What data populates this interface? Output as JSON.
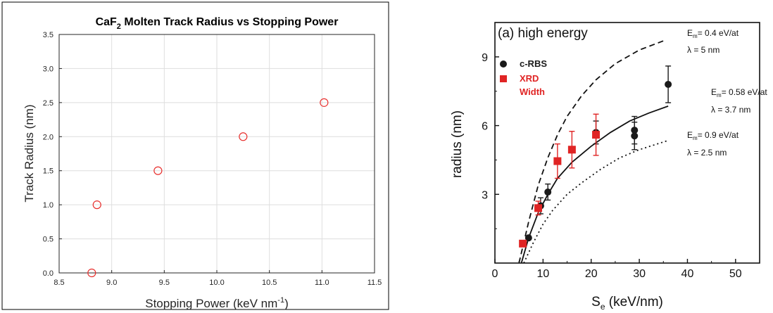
{
  "chart_data": [
    {
      "type": "scatter",
      "title_main": "CaF",
      "title_sub": "2",
      "title_rest": " Molten Track Radius vs Stopping Power",
      "xlabel_main": "Stopping Power (keV nm",
      "xlabel_sup": "-1",
      "xlabel_end": ")",
      "ylabel": "Track Radius (nm)",
      "xlim": [
        8.5,
        11.5
      ],
      "ylim": [
        0,
        3.5
      ],
      "xticks": [
        "8.5",
        "9.0",
        "9.5",
        "10.0",
        "10.5",
        "11.0",
        "11.5"
      ],
      "yticks": [
        "0.0",
        "0.5",
        "1.0",
        "1.5",
        "2.0",
        "2.5",
        "3.0",
        "3.5"
      ],
      "grid": true,
      "marker_color": "#e8302e",
      "points": [
        {
          "x": 8.81,
          "y": 0.0
        },
        {
          "x": 8.86,
          "y": 1.0
        },
        {
          "x": 9.44,
          "y": 1.5
        },
        {
          "x": 10.25,
          "y": 2.0
        },
        {
          "x": 11.02,
          "y": 2.5
        }
      ]
    },
    {
      "type": "scatter",
      "annotation": "(a) high energy",
      "xlabel_main": "S",
      "xlabel_sub": "e",
      "xlabel_end": " (keV/nm)",
      "ylabel": "radius (nm)",
      "xlim": [
        0,
        55
      ],
      "ylim": [
        0,
        10.5
      ],
      "xticks": [
        "0",
        "10",
        "20",
        "30",
        "40",
        "50"
      ],
      "yticks": [
        "3",
        "6",
        "9"
      ],
      "legend": [
        {
          "label": "c-RBS",
          "marker": "circle",
          "color": "#1a1a1a"
        },
        {
          "label": "XRD",
          "marker": "square",
          "color": "#e02424"
        },
        {
          "label": "Width",
          "marker": "none",
          "color": "#e02424"
        }
      ],
      "series": [
        {
          "name": "c-RBS",
          "color": "#1a1a1a",
          "points": [
            {
              "x": 7,
              "y": 1.1,
              "err": 0
            },
            {
              "x": 9.5,
              "y": 2.5,
              "err": 0.35
            },
            {
              "x": 11,
              "y": 3.1,
              "err": 0.35
            },
            {
              "x": 21,
              "y": 5.7,
              "err": 0.5
            },
            {
              "x": 29,
              "y": 5.55,
              "err": 0.6
            },
            {
              "x": 29,
              "y": 5.8,
              "err": 0.6
            },
            {
              "x": 36,
              "y": 7.8,
              "err": 0.8
            }
          ]
        },
        {
          "name": "XRD",
          "color": "#e02424",
          "points": [
            {
              "x": 5.8,
              "y": 0.85,
              "err": 0
            },
            {
              "x": 9,
              "y": 2.4,
              "err": 0.3
            },
            {
              "x": 13,
              "y": 4.45,
              "err": 0.75
            },
            {
              "x": 16,
              "y": 4.95,
              "err": 0.8
            },
            {
              "x": 21,
              "y": 5.6,
              "err": 0.9
            }
          ]
        }
      ],
      "curves": [
        {
          "style": "dashed",
          "label_line1_main": "E",
          "label_line1_sub": "m",
          "label_line1_rest": "= 0.4 eV/at",
          "label_line2": "λ = 5 nm",
          "points": [
            [
              5,
              0
            ],
            [
              7,
              1.8
            ],
            [
              9,
              3.4
            ],
            [
              11,
              4.6
            ],
            [
              13,
              5.6
            ],
            [
              15,
              6.4
            ],
            [
              18,
              7.3
            ],
            [
              21,
              8.0
            ],
            [
              25,
              8.7
            ],
            [
              30,
              9.3
            ],
            [
              35,
              9.7
            ]
          ]
        },
        {
          "style": "solid",
          "label_line1_main": "E",
          "label_line1_sub": "m",
          "label_line1_rest": "= 0.58 eV/at",
          "label_line2": "λ = 3.7 nm",
          "points": [
            [
              5.5,
              0
            ],
            [
              7,
              1.1
            ],
            [
              9,
              2.2
            ],
            [
              11,
              3.0
            ],
            [
              13,
              3.7
            ],
            [
              16,
              4.4
            ],
            [
              20,
              5.1
            ],
            [
              24,
              5.7
            ],
            [
              28,
              6.2
            ],
            [
              32,
              6.55
            ],
            [
              36,
              6.85
            ]
          ]
        },
        {
          "style": "dotted",
          "label_line1_main": "E",
          "label_line1_sub": "m",
          "label_line1_rest": "= 0.9 eV/at",
          "label_line2": "λ = 2.5 nm",
          "points": [
            [
              6,
              0
            ],
            [
              8,
              0.9
            ],
            [
              10,
              1.7
            ],
            [
              12,
              2.3
            ],
            [
              15,
              3.0
            ],
            [
              18,
              3.5
            ],
            [
              22,
              4.1
            ],
            [
              26,
              4.6
            ],
            [
              30,
              4.95
            ],
            [
              36,
              5.35
            ]
          ]
        }
      ]
    }
  ]
}
